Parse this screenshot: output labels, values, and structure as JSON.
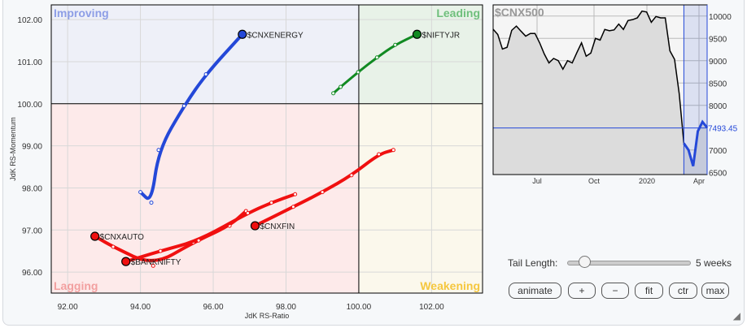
{
  "chart_data": [
    {
      "type": "scatter",
      "subtype": "relative-rotation-graph",
      "xlabel": "JdK RS-Ratio",
      "ylabel": "JdK RS-Momentum",
      "xlim": [
        91.55,
        103.4
      ],
      "ylim": [
        95.5,
        102.35
      ],
      "xticks": [
        "92.00",
        "94.00",
        "96.00",
        "98.00",
        "100.00",
        "102.00"
      ],
      "xtick_values": [
        92,
        94,
        96,
        98,
        100,
        102
      ],
      "yticks": [
        "96.00",
        "97.00",
        "98.00",
        "99.00",
        "100.00",
        "101.00",
        "102.00"
      ],
      "ytick_values": [
        96,
        97,
        98,
        99,
        100,
        101,
        102
      ],
      "grid": true,
      "quadrants": {
        "improving": "Improving",
        "leading": "Leading",
        "lagging": "Lagging",
        "weakening": "Weakening"
      },
      "quadrant_colors": {
        "improving": "#eef0f8",
        "leading": "#e8f2e8",
        "lagging": "#fdeaea",
        "weakening": "#fbf8ec"
      },
      "quadrant_label_colors": {
        "improving": "#8d9ee6",
        "leading": "#6fbf7c",
        "lagging": "#f2a0a0",
        "weakening": "#f5c73e"
      },
      "series": [
        {
          "name": "$CNXENERGY",
          "color": "#2448d8",
          "points": [
            [
              94.0,
              97.9
            ],
            [
              94.3,
              97.65
            ],
            [
              94.5,
              98.9
            ],
            [
              95.2,
              99.95
            ],
            [
              95.8,
              100.7
            ],
            [
              96.8,
              101.65
            ]
          ]
        },
        {
          "name": "$NIFTYJR",
          "color": "#118a22",
          "points": [
            [
              99.3,
              100.25
            ],
            [
              99.5,
              100.4
            ],
            [
              99.98,
              100.75
            ],
            [
              100.5,
              101.1
            ],
            [
              101.0,
              101.4
            ],
            [
              101.6,
              101.65
            ]
          ]
        },
        {
          "name": "$CNXFIN",
          "color": "#f01010",
          "points": [
            [
              100.95,
              98.9
            ],
            [
              100.55,
              98.8
            ],
            [
              99.8,
              98.3
            ],
            [
              99.0,
              97.9
            ],
            [
              98.2,
              97.55
            ],
            [
              97.15,
              97.1
            ]
          ]
        },
        {
          "name": "$CNXAUTO",
          "color": "#f01010",
          "points": [
            [
              96.9,
              97.45
            ],
            [
              96.45,
              97.1
            ],
            [
              95.45,
              96.7
            ],
            [
              94.35,
              96.15
            ],
            [
              93.25,
              96.6
            ],
            [
              92.75,
              96.85
            ]
          ]
        },
        {
          "name": "$BANKNIFTY",
          "color": "#f01010",
          "points": [
            [
              98.25,
              97.85
            ],
            [
              97.6,
              97.65
            ],
            [
              96.95,
              97.4
            ],
            [
              95.6,
              96.75
            ],
            [
              94.55,
              96.5
            ],
            [
              93.6,
              96.25
            ]
          ]
        }
      ]
    },
    {
      "type": "line",
      "title": "$CNX500",
      "ylim": [
        6450,
        10250
      ],
      "yticks": [
        "10000",
        "9500",
        "9000",
        "8500",
        "8000",
        "7000",
        "6500"
      ],
      "ytick_values": [
        10000,
        9500,
        9000,
        8500,
        8000,
        7000,
        6500
      ],
      "xticks": [
        "Jul",
        "Oct",
        "2020",
        "Apr"
      ],
      "current_value": "7493.45",
      "current_value_num": 7493.45,
      "grid": true,
      "tail_color": "#2448d8",
      "values": [
        9704,
        9587,
        9260,
        9300,
        9680,
        9775,
        9660,
        9550,
        9610,
        9610,
        9400,
        9150,
        8950,
        9050,
        9000,
        8810,
        9000,
        8950,
        9180,
        9400,
        9100,
        9170,
        9500,
        9460,
        9700,
        9670,
        9690,
        9820,
        9700,
        9900,
        9920,
        9960,
        10110,
        10090,
        9860,
        9990,
        9960,
        9960,
        9220,
        9030,
        8260,
        7150,
        7000,
        6640,
        7420,
        7630,
        7500
      ],
      "tail_points": 6
    }
  ],
  "controls": {
    "tail_label": "Tail Length:",
    "tail_value": "5 weeks",
    "tail_weeks": 5,
    "buttons": [
      "animate",
      "+",
      "−",
      "fit",
      "ctr",
      "max"
    ]
  }
}
